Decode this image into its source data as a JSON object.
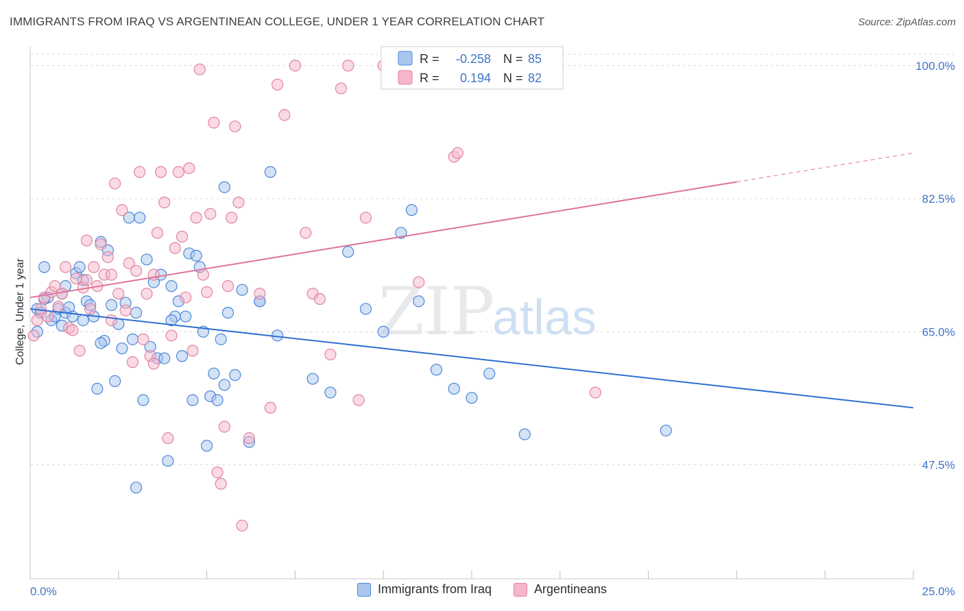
{
  "title": "IMMIGRANTS FROM IRAQ VS ARGENTINEAN COLLEGE, UNDER 1 YEAR CORRELATION CHART",
  "source": "Source: ZipAtlas.com",
  "watermark": {
    "zip": "ZIP",
    "atlas": "atlas"
  },
  "colors": {
    "blue_fill": "#a9c6ee",
    "blue_stroke": "#4a86d8",
    "blue_line": "#2d6fd1",
    "pink_fill": "#f5b6c9",
    "pink_stroke": "#e1839f",
    "pink_line": "#e0729a",
    "tick": "#3f73c8",
    "grid": "#dcdcdc"
  },
  "legend": {
    "r_label": "R =",
    "n_label": "N =",
    "rows": [
      {
        "r": "-0.258",
        "n": "85"
      },
      {
        "r": "0.194",
        "n": "82"
      }
    ]
  },
  "chart_data": {
    "type": "scatter",
    "xlabel": "",
    "ylabel": "College, Under 1 year",
    "xlim": [
      0,
      25
    ],
    "ylim": [
      32.5,
      102.5
    ],
    "x_tick_labels": {
      "left": "0.0%",
      "right": "25.0%"
    },
    "y_ticks": [
      {
        "value": 100.0,
        "label": "100.0%"
      },
      {
        "value": 82.5,
        "label": "82.5%"
      },
      {
        "value": 65.0,
        "label": "65.0%"
      },
      {
        "value": 47.5,
        "label": "47.5%"
      }
    ],
    "series": [
      {
        "name": "Immigrants from Iraq",
        "color": "blue",
        "trend": {
          "x0": 0,
          "y0": 68.0,
          "x1": 25,
          "y1": 55.0,
          "dashed_from": null
        },
        "points": [
          [
            0.2,
            68.0
          ],
          [
            0.4,
            73.5
          ],
          [
            0.5,
            69.5
          ],
          [
            0.6,
            66.5
          ],
          [
            0.7,
            67.0
          ],
          [
            0.8,
            68.0
          ],
          [
            0.9,
            65.8
          ],
          [
            1.0,
            67.5
          ],
          [
            1.1,
            68.2
          ],
          [
            1.2,
            67.0
          ],
          [
            1.3,
            72.7
          ],
          [
            1.4,
            73.5
          ],
          [
            1.5,
            71.8
          ],
          [
            1.6,
            69.0
          ],
          [
            1.7,
            68.5
          ],
          [
            1.8,
            67.0
          ],
          [
            1.9,
            57.5
          ],
          [
            2.0,
            76.8
          ],
          [
            2.1,
            63.8
          ],
          [
            2.2,
            75.7
          ],
          [
            2.3,
            68.5
          ],
          [
            2.4,
            58.5
          ],
          [
            2.5,
            66.0
          ],
          [
            2.6,
            62.8
          ],
          [
            2.7,
            68.8
          ],
          [
            2.8,
            80.0
          ],
          [
            2.9,
            64.0
          ],
          [
            3.0,
            67.5
          ],
          [
            3.1,
            80.0
          ],
          [
            3.2,
            56.0
          ],
          [
            3.3,
            74.5
          ],
          [
            3.4,
            63.0
          ],
          [
            3.5,
            71.5
          ],
          [
            3.6,
            61.5
          ],
          [
            3.7,
            72.5
          ],
          [
            3.8,
            61.5
          ],
          [
            3.9,
            48.0
          ],
          [
            4.0,
            71.0
          ],
          [
            4.1,
            67.0
          ],
          [
            4.2,
            69.0
          ],
          [
            4.3,
            61.8
          ],
          [
            4.4,
            67.0
          ],
          [
            4.5,
            75.3
          ],
          [
            4.6,
            56.0
          ],
          [
            4.7,
            75.0
          ],
          [
            4.8,
            73.5
          ],
          [
            4.9,
            65.0
          ],
          [
            5.0,
            50.0
          ],
          [
            5.1,
            56.5
          ],
          [
            5.2,
            59.5
          ],
          [
            5.3,
            56.0
          ],
          [
            5.4,
            64.0
          ],
          [
            5.5,
            84.0
          ],
          [
            5.6,
            67.5
          ],
          [
            5.8,
            59.3
          ],
          [
            6.0,
            70.5
          ],
          [
            6.2,
            50.5
          ],
          [
            6.5,
            69.0
          ],
          [
            6.8,
            86.0
          ],
          [
            7.0,
            64.5
          ],
          [
            8.0,
            58.8
          ],
          [
            8.5,
            57.0
          ],
          [
            9.0,
            75.5
          ],
          [
            9.5,
            68.0
          ],
          [
            10.0,
            65.0
          ],
          [
            10.5,
            78.0
          ],
          [
            10.8,
            81.0
          ],
          [
            11.0,
            69.0
          ],
          [
            11.5,
            60.0
          ],
          [
            12.0,
            57.5
          ],
          [
            12.5,
            56.3
          ],
          [
            13.0,
            59.5
          ],
          [
            14.0,
            51.5
          ],
          [
            18.0,
            52.0
          ],
          [
            0.2,
            65.0
          ],
          [
            0.3,
            67.5
          ],
          [
            0.4,
            69.3
          ],
          [
            1.0,
            71.0
          ],
          [
            1.5,
            66.5
          ],
          [
            2.0,
            63.5
          ],
          [
            3.0,
            44.5
          ],
          [
            4.0,
            66.5
          ],
          [
            5.5,
            58.0
          ],
          [
            6.5,
            69.0
          ],
          [
            0.9,
            70.0
          ]
        ]
      },
      {
        "name": "Argentineans",
        "color": "pink",
        "trend": {
          "x0": 0,
          "y0": 69.5,
          "x1": 25,
          "y1": 88.5,
          "dashed_from": 20
        },
        "points": [
          [
            0.2,
            66.5
          ],
          [
            0.3,
            68.0
          ],
          [
            0.4,
            69.5
          ],
          [
            0.5,
            67.0
          ],
          [
            0.6,
            70.2
          ],
          [
            0.7,
            71.0
          ],
          [
            0.8,
            68.3
          ],
          [
            0.9,
            70.0
          ],
          [
            1.0,
            73.5
          ],
          [
            1.1,
            65.5
          ],
          [
            1.2,
            65.2
          ],
          [
            1.3,
            72.0
          ],
          [
            1.4,
            62.5
          ],
          [
            1.5,
            70.8
          ],
          [
            1.6,
            71.8
          ],
          [
            1.7,
            68.0
          ],
          [
            1.8,
            73.5
          ],
          [
            1.9,
            71.0
          ],
          [
            2.0,
            76.5
          ],
          [
            2.1,
            72.5
          ],
          [
            2.2,
            74.8
          ],
          [
            2.3,
            72.5
          ],
          [
            2.4,
            84.5
          ],
          [
            2.5,
            70.0
          ],
          [
            2.6,
            81.0
          ],
          [
            2.7,
            67.8
          ],
          [
            2.8,
            74.0
          ],
          [
            2.9,
            61.0
          ],
          [
            3.0,
            73.0
          ],
          [
            3.1,
            86.0
          ],
          [
            3.2,
            64.0
          ],
          [
            3.3,
            70.0
          ],
          [
            3.4,
            61.8
          ],
          [
            3.5,
            72.5
          ],
          [
            3.6,
            78.0
          ],
          [
            3.7,
            86.0
          ],
          [
            3.8,
            82.0
          ],
          [
            3.9,
            51.0
          ],
          [
            4.0,
            64.5
          ],
          [
            4.1,
            76.0
          ],
          [
            4.2,
            86.0
          ],
          [
            4.3,
            77.5
          ],
          [
            4.4,
            69.5
          ],
          [
            4.5,
            86.5
          ],
          [
            4.6,
            62.5
          ],
          [
            4.7,
            80.0
          ],
          [
            4.8,
            99.5
          ],
          [
            4.9,
            72.5
          ],
          [
            5.0,
            70.2
          ],
          [
            5.1,
            80.5
          ],
          [
            5.2,
            92.5
          ],
          [
            5.3,
            46.5
          ],
          [
            5.4,
            45.0
          ],
          [
            5.5,
            52.5
          ],
          [
            5.6,
            71.0
          ],
          [
            5.7,
            80.0
          ],
          [
            5.8,
            92.0
          ],
          [
            5.9,
            82.0
          ],
          [
            6.0,
            39.5
          ],
          [
            6.2,
            51.0
          ],
          [
            6.5,
            70.0
          ],
          [
            6.8,
            55.0
          ],
          [
            7.0,
            97.5
          ],
          [
            7.2,
            93.5
          ],
          [
            7.5,
            100.0
          ],
          [
            7.8,
            78.0
          ],
          [
            8.0,
            70.0
          ],
          [
            8.2,
            69.3
          ],
          [
            8.5,
            62.0
          ],
          [
            8.8,
            97.0
          ],
          [
            9.0,
            100.0
          ],
          [
            9.3,
            56.0
          ],
          [
            9.5,
            80.0
          ],
          [
            10.0,
            100.0
          ],
          [
            11.0,
            71.5
          ],
          [
            12.0,
            88.0
          ],
          [
            12.1,
            88.5
          ],
          [
            16.0,
            57.0
          ],
          [
            0.1,
            64.5
          ],
          [
            1.6,
            77.0
          ],
          [
            3.5,
            60.8
          ],
          [
            2.3,
            66.5
          ]
        ]
      }
    ]
  },
  "bottom_legend": [
    {
      "label": "Immigrants from Iraq"
    },
    {
      "label": "Argentineans"
    }
  ]
}
